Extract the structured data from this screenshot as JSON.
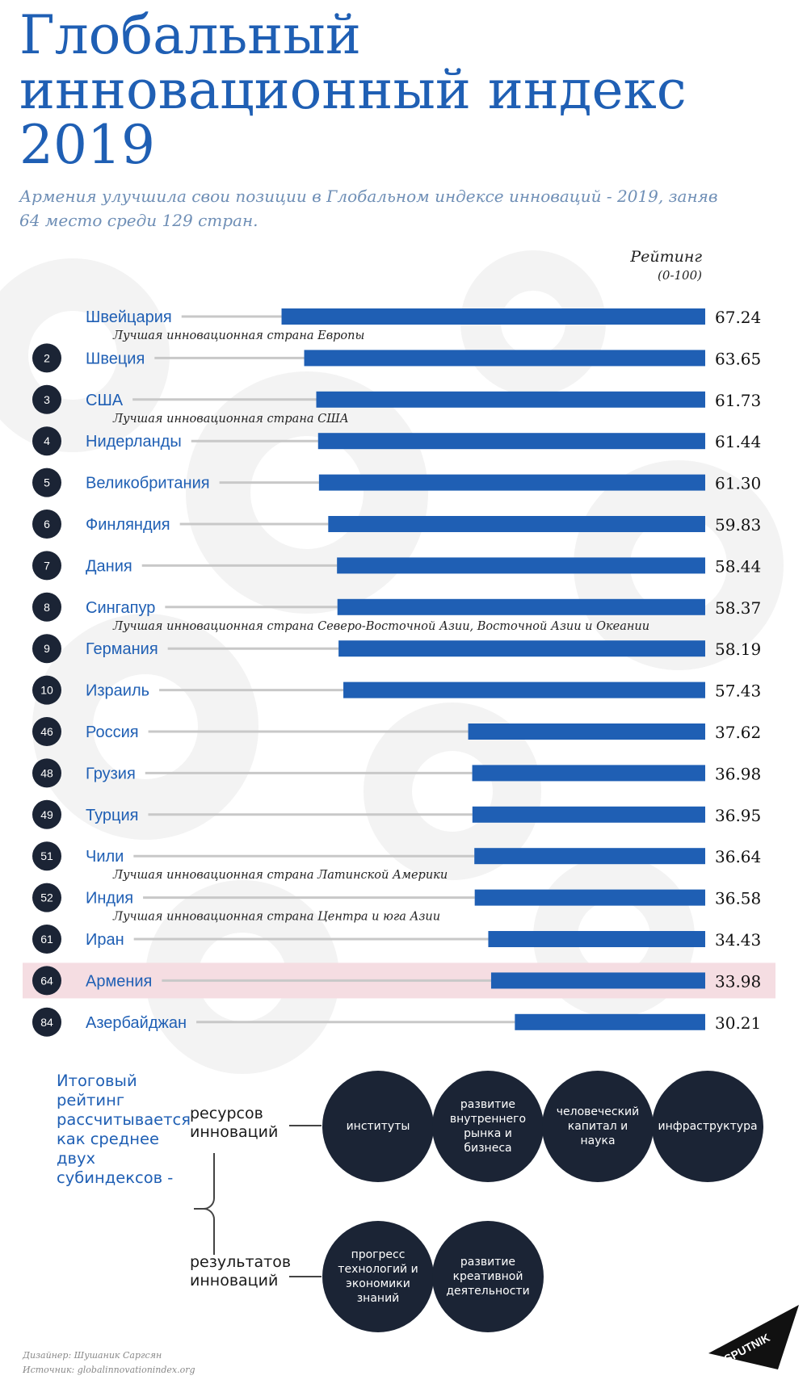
{
  "title": "Глобальный инновационный индекс 2019",
  "subtitle": "Армения улучшила свои позиции в Глобальном индексе инноваций - 2019, заняв 64 место среди 129 стран.",
  "rating_label": "Рейтинг",
  "rating_scale": "(0-100)",
  "chart_data": {
    "type": "bar",
    "orientation": "horizontal",
    "categories": [
      "Швейцария",
      "Швеция",
      "США",
      "Нидерланды",
      "Великобритания",
      "Финляндия",
      "Дания",
      "Сингапур",
      "Германия",
      "Израиль",
      "Россия",
      "Грузия",
      "Турция",
      "Чили",
      "Индия",
      "Иран",
      "Армения",
      "Азербайджан"
    ],
    "ranks": [
      "",
      "2",
      "3",
      "4",
      "5",
      "6",
      "7",
      "8",
      "9",
      "10",
      "46",
      "48",
      "49",
      "51",
      "52",
      "61",
      "64",
      "84"
    ],
    "values": [
      67.24,
      63.65,
      61.73,
      61.44,
      61.3,
      59.83,
      58.44,
      58.37,
      58.19,
      57.43,
      37.62,
      36.98,
      36.95,
      36.64,
      36.58,
      34.43,
      33.98,
      30.21
    ],
    "value_labels": [
      "67.24",
      "63.65",
      "61.73",
      "61.44",
      "61.30",
      "59.83",
      "58.44",
      "58.37",
      "58.19",
      "57.43",
      "37.62",
      "36.98",
      "36.95",
      "36.64",
      "36.58",
      "34.43",
      "33.98",
      "30.21"
    ],
    "annotations": {
      "Швейцария": "Лучшая инновационная страна Европы",
      "США": "Лучшая инновационная страна США",
      "Сингапур": "Лучшая инновационная страна Северо-Восточной Азии, Восточной Азии и Океании",
      "Чили": "Лучшая инновационная страна Латинской Америки",
      "Индия": "Лучшая инновационная страна Центра и юга Азии"
    },
    "highlight": "Армения",
    "xlim": [
      0,
      100
    ],
    "bar_color": "#1f5fb4",
    "highlight_color": "#f5dde2",
    "grid": false,
    "legend": "none"
  },
  "note": "Итоговый рейтинг рассчитывается как среднее двух субиндексов -",
  "resources_label": "ресурсов инноваций",
  "results_label": "результатов инноваций",
  "resource_items": [
    "институты",
    "развитие внутреннего рынка и бизнеса",
    "человеческий капитал и наука",
    "инфраструктура"
  ],
  "result_items": [
    "прогресс технологий и экономики знаний",
    "развитие креативной деятельности"
  ],
  "designer": "Дизайнер: Шушаник Саргсян",
  "source": "Источник: globalinnovationindex.org",
  "logo_text": "SPUTNIK",
  "colors": {
    "accent": "#1f5fb4",
    "dark": "#1b2435",
    "subtitle": "#6f8fb6",
    "connector": "#c8c8c8"
  }
}
